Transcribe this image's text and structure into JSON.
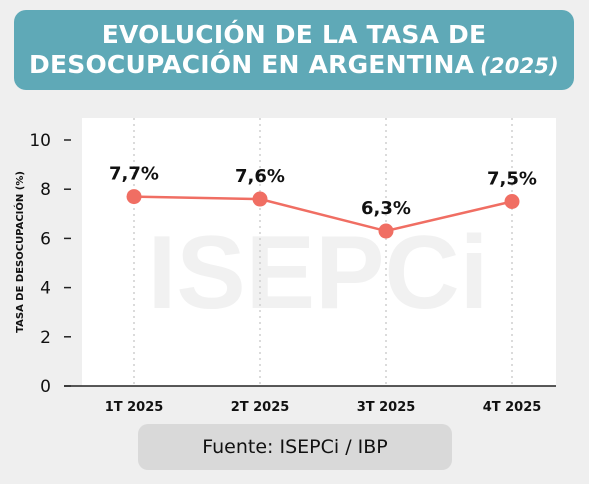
{
  "title": {
    "line1": "EVOLUCIÓN DE LA TASA DE",
    "line2": "DESOCUPACIÓN EN ARGENTINA",
    "year": "(2025)"
  },
  "watermark": "ISEPCi",
  "colors": {
    "banner": "#5fa9b7",
    "line": "#f06e63",
    "plot_background": "#ffffff",
    "page_background": "#efefef"
  },
  "chart_data": {
    "type": "line",
    "categories": [
      "1T 2025",
      "2T 2025",
      "3T 2025",
      "4T 2025"
    ],
    "values": [
      7.7,
      7.6,
      6.3,
      7.5
    ],
    "data_labels": [
      "7,7%",
      "7,6%",
      "6,3%",
      "7,5%"
    ],
    "ylabel": "TASA DE DESOCUPACIÓN (%)",
    "ylim": [
      0,
      10
    ],
    "yticks": [
      0,
      2,
      4,
      6,
      8,
      10
    ],
    "grid": "vertical dotted"
  },
  "footer": "Fuente: ISEPCi / IBP"
}
